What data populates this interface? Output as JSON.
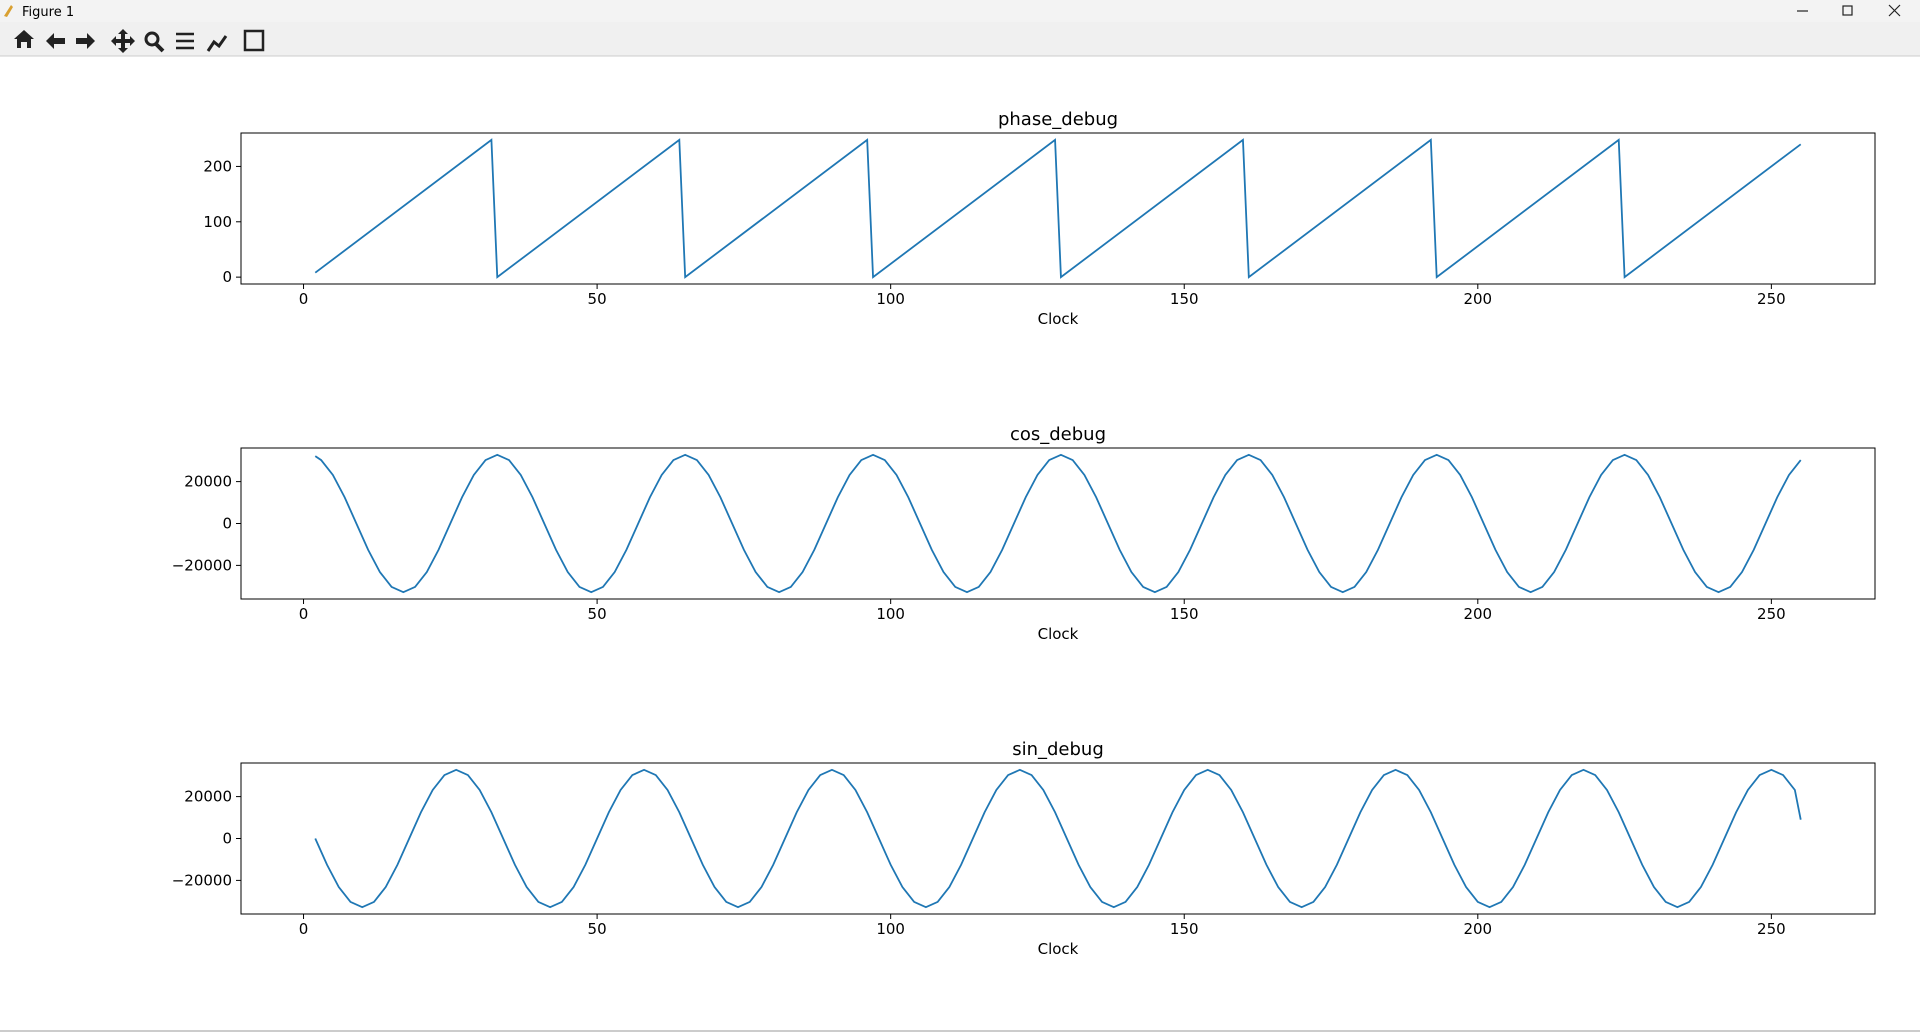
{
  "window": {
    "title": "Figure 1"
  },
  "chart_data": [
    {
      "type": "line",
      "title": "phase_debug",
      "x_label": "Clock",
      "color": "#1f77b4",
      "x": [
        2,
        32,
        33,
        64,
        65,
        96,
        97,
        128,
        129,
        160,
        161,
        192,
        193,
        224,
        225,
        255
      ],
      "values": [
        8,
        248,
        0,
        248,
        0,
        248,
        0,
        248,
        0,
        248,
        0,
        248,
        0,
        248,
        0,
        240
      ],
      "xlim": [
        -10.65,
        267.65
      ],
      "xticks": [
        0,
        50,
        100,
        150,
        200,
        250
      ],
      "ylim": [
        -12.4,
        260.4
      ],
      "yticks": [
        0,
        100,
        200
      ]
    },
    {
      "type": "line",
      "title": "cos_debug",
      "x_label": "Clock",
      "color": "#1f77b4",
      "x": [
        2,
        3,
        5,
        7,
        9,
        11,
        13,
        15,
        17,
        19,
        21,
        23,
        25,
        27,
        29,
        31,
        33,
        35,
        37,
        39,
        41,
        43,
        45,
        47,
        49,
        51,
        53,
        55,
        57,
        59,
        61,
        63,
        65,
        67,
        69,
        71,
        73,
        75,
        77,
        79,
        81,
        83,
        85,
        87,
        89,
        91,
        93,
        95,
        97,
        99,
        101,
        103,
        105,
        107,
        109,
        111,
        113,
        115,
        117,
        119,
        121,
        123,
        125,
        127,
        129,
        131,
        133,
        135,
        137,
        139,
        141,
        143,
        145,
        147,
        149,
        151,
        153,
        155,
        157,
        159,
        161,
        163,
        165,
        167,
        169,
        171,
        173,
        175,
        177,
        179,
        181,
        183,
        185,
        187,
        189,
        191,
        193,
        195,
        197,
        199,
        201,
        203,
        205,
        207,
        209,
        211,
        213,
        215,
        217,
        219,
        221,
        223,
        225,
        227,
        229,
        231,
        233,
        235,
        237,
        239,
        241,
        243,
        245,
        247,
        249,
        251,
        253,
        255
      ],
      "values": [
        32138,
        30273,
        23170,
        12539,
        0,
        -12539,
        -23170,
        -30273,
        -32767,
        -30273,
        -23170,
        -12539,
        0,
        12539,
        23170,
        30273,
        32767,
        30273,
        23170,
        12539,
        0,
        -12539,
        -23170,
        -30273,
        -32767,
        -30273,
        -23170,
        -12539,
        0,
        12539,
        23170,
        30273,
        32767,
        30273,
        23170,
        12539,
        0,
        -12539,
        -23170,
        -30273,
        -32767,
        -30273,
        -23170,
        -12539,
        0,
        12539,
        23170,
        30273,
        32767,
        30273,
        23170,
        12539,
        0,
        -12539,
        -23170,
        -30273,
        -32767,
        -30273,
        -23170,
        -12539,
        0,
        12539,
        23170,
        30273,
        32767,
        30273,
        23170,
        12539,
        0,
        -12539,
        -23170,
        -30273,
        -32767,
        -30273,
        -23170,
        -12539,
        0,
        12539,
        23170,
        30273,
        32767,
        30273,
        23170,
        12539,
        0,
        -12539,
        -23170,
        -30273,
        -32767,
        -30273,
        -23170,
        -12539,
        0,
        12539,
        23170,
        30273,
        32767,
        30273,
        23170,
        12539,
        0,
        -12539,
        -23170,
        -30273,
        -32767,
        -30273,
        -23170,
        -12539,
        0,
        12539,
        23170,
        30273,
        32767,
        30273,
        23170,
        12539,
        0,
        -12539,
        -23170,
        -30273,
        -32767,
        -30273,
        -23170,
        -12539,
        0,
        12539,
        23170,
        30273
      ],
      "xlim": [
        -10.65,
        267.65
      ],
      "xticks": [
        0,
        50,
        100,
        150,
        200,
        250
      ],
      "ylim": [
        -36043.7,
        36043.7
      ],
      "yticks": [
        {
          "value": -20000,
          "label": "−20000"
        },
        0,
        20000
      ]
    },
    {
      "type": "line",
      "title": "sin_debug",
      "x_label": "Clock",
      "color": "#1f77b4",
      "x": [
        2,
        4,
        6,
        8,
        10,
        12,
        14,
        16,
        18,
        20,
        22,
        24,
        26,
        28,
        30,
        32,
        34,
        36,
        38,
        40,
        42,
        44,
        46,
        48,
        50,
        52,
        54,
        56,
        58,
        60,
        62,
        64,
        66,
        68,
        70,
        72,
        74,
        76,
        78,
        80,
        82,
        84,
        86,
        88,
        90,
        92,
        94,
        96,
        98,
        100,
        102,
        104,
        106,
        108,
        110,
        112,
        114,
        116,
        118,
        120,
        122,
        124,
        126,
        128,
        130,
        132,
        134,
        136,
        138,
        140,
        142,
        144,
        146,
        148,
        150,
        152,
        154,
        156,
        158,
        160,
        162,
        164,
        166,
        168,
        170,
        172,
        174,
        176,
        178,
        180,
        182,
        184,
        186,
        188,
        190,
        192,
        194,
        196,
        198,
        200,
        202,
        204,
        206,
        208,
        210,
        212,
        214,
        216,
        218,
        220,
        222,
        224,
        226,
        228,
        230,
        232,
        234,
        236,
        238,
        240,
        242,
        244,
        246,
        248,
        250,
        252,
        254,
        255
      ],
      "values": [
        0,
        -12539,
        -23170,
        -30273,
        -32767,
        -30273,
        -23170,
        -12539,
        0,
        12539,
        23170,
        30273,
        32767,
        30273,
        23170,
        12539,
        0,
        -12539,
        -23170,
        -30273,
        -32767,
        -30273,
        -23170,
        -12539,
        0,
        12539,
        23170,
        30273,
        32767,
        30273,
        23170,
        12539,
        0,
        -12539,
        -23170,
        -30273,
        -32767,
        -30273,
        -23170,
        -12539,
        0,
        12539,
        23170,
        30273,
        32767,
        30273,
        23170,
        12539,
        0,
        -12539,
        -23170,
        -30273,
        -32767,
        -30273,
        -23170,
        -12539,
        0,
        12539,
        23170,
        30273,
        32767,
        30273,
        23170,
        12539,
        0,
        -12539,
        -23170,
        -30273,
        -32767,
        -30273,
        -23170,
        -12539,
        0,
        12539,
        23170,
        30273,
        32767,
        30273,
        23170,
        12539,
        0,
        -12539,
        -23170,
        -30273,
        -32767,
        -30273,
        -23170,
        -12539,
        0,
        12539,
        23170,
        30273,
        32767,
        30273,
        23170,
        12539,
        0,
        -12539,
        -23170,
        -30273,
        -32767,
        -30273,
        -23170,
        -12539,
        0,
        12539,
        23170,
        30273,
        32767,
        30273,
        23170,
        12539,
        0,
        -12539,
        -23170,
        -30273,
        -32767,
        -30273,
        -23170,
        -12539,
        0,
        12539,
        23170,
        30273,
        32767,
        30273,
        23170,
        9000
      ],
      "xlim": [
        -10.65,
        267.65
      ],
      "xticks": [
        0,
        50,
        100,
        150,
        200,
        250
      ],
      "ylim": [
        -36043.7,
        36043.7
      ],
      "yticks": [
        {
          "value": -20000,
          "label": "−20000"
        },
        0,
        20000
      ]
    }
  ]
}
